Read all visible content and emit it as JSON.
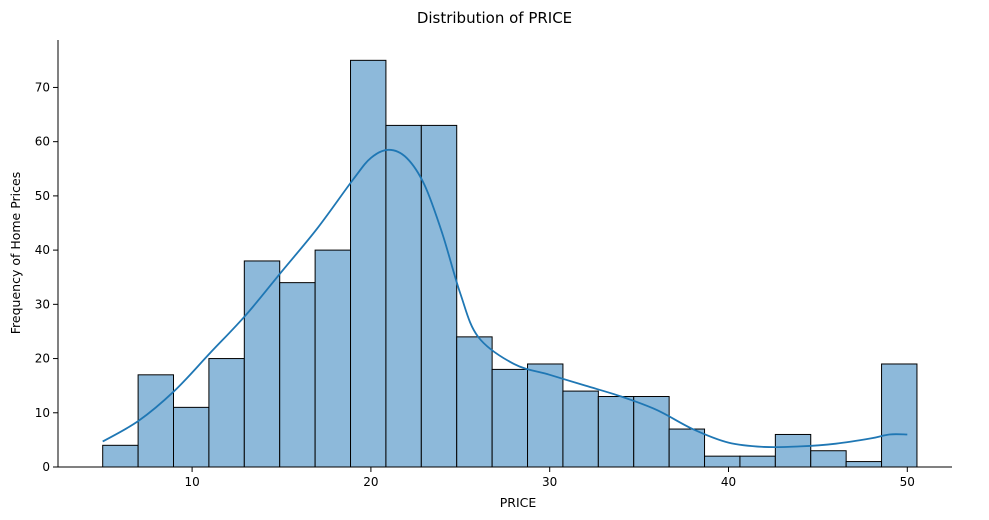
{
  "chart_data": {
    "type": "bar",
    "subtype": "histogram-with-kde",
    "title": "Distribution of PRICE",
    "xlabel": "PRICE",
    "ylabel": "Frequency of Home Prices",
    "xlim": [
      2.5,
      52.5
    ],
    "ylim": [
      0,
      78.75
    ],
    "xticks": [
      10,
      20,
      30,
      40,
      50
    ],
    "yticks": [
      0,
      10,
      20,
      30,
      40,
      50,
      60,
      70
    ],
    "grid": false,
    "bin_start": 5.0,
    "bin_width": 1.98,
    "values": [
      4,
      17,
      11,
      20,
      38,
      34,
      40,
      75,
      63,
      63,
      24,
      18,
      19,
      14,
      13,
      13,
      7,
      2,
      2,
      6,
      3,
      1,
      19
    ],
    "kde": {
      "x": [
        5,
        7,
        9,
        11,
        13,
        15,
        17,
        19,
        20,
        21,
        22,
        23,
        24,
        25,
        26,
        28,
        30,
        32,
        34,
        36,
        38,
        40,
        42,
        44,
        46,
        48,
        49,
        50
      ],
      "y": [
        4.7,
        8.5,
        14,
        21,
        28,
        36,
        44,
        53,
        57,
        58.5,
        57,
        52,
        43,
        32,
        24,
        19,
        17,
        15,
        13,
        10.5,
        7,
        4.5,
        3.7,
        3.8,
        4.3,
        5.3,
        6,
        6
      ]
    },
    "colors": {
      "bar": "#8db9da",
      "kde": "#1f77b4"
    }
  }
}
